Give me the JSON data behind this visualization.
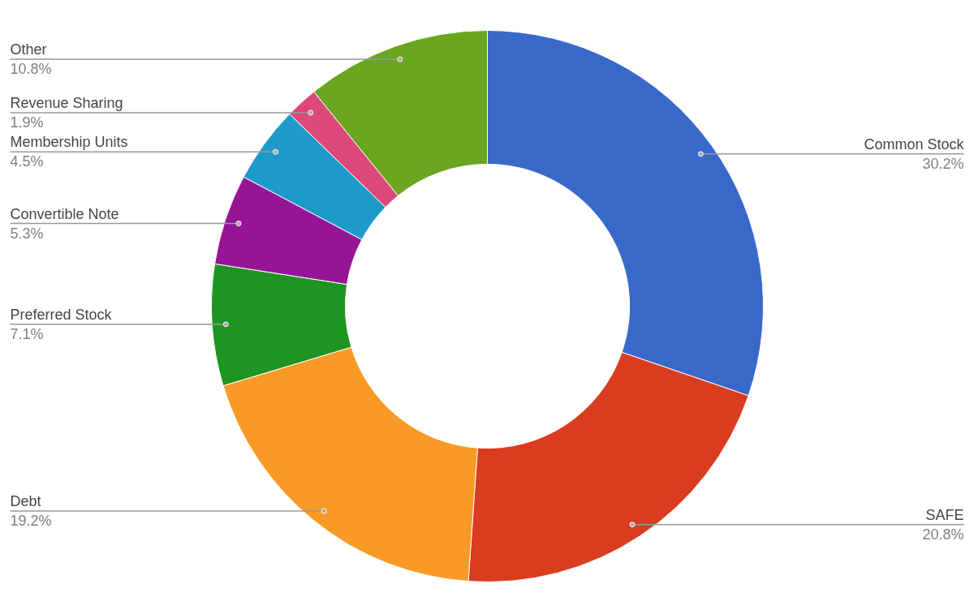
{
  "chart_data": {
    "type": "donut",
    "categories": [
      "Common Stock",
      "SAFE",
      "Debt",
      "Preferred Stock",
      "Convertible Note",
      "Membership Units",
      "Revenue Sharing",
      "Other"
    ],
    "values": [
      30.2,
      20.8,
      19.2,
      7.1,
      5.3,
      4.5,
      1.9,
      10.8
    ],
    "value_labels": [
      "30.2%",
      "20.8%",
      "19.2%",
      "7.1%",
      "5.3%",
      "4.5%",
      "1.9%",
      "10.8%"
    ],
    "colors": [
      "#3869c9",
      "#d93c1e",
      "#f99a26",
      "#1e9422",
      "#961596",
      "#1d9ac8",
      "#dc4878",
      "#6aa61f"
    ]
  }
}
